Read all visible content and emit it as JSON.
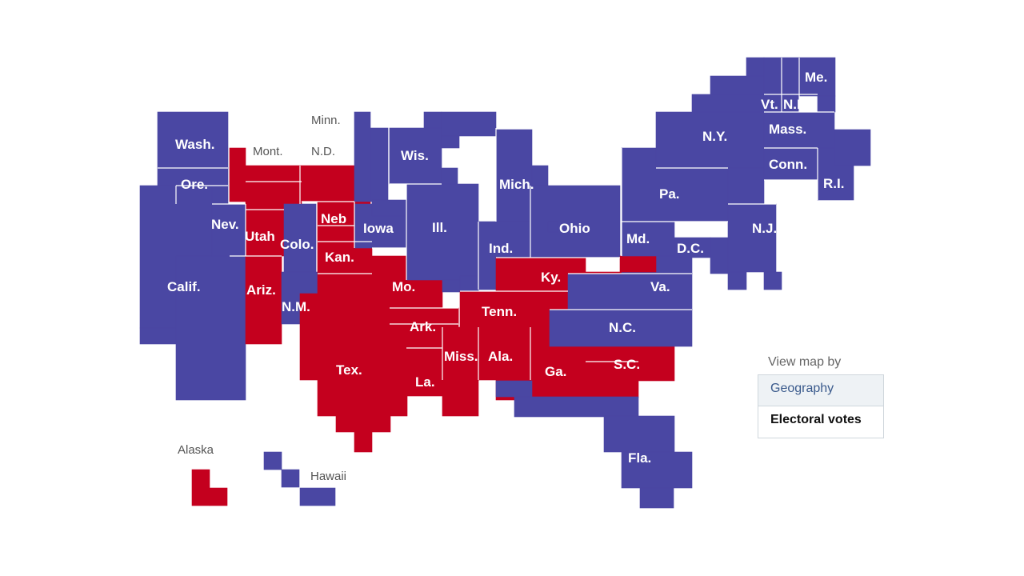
{
  "colors": {
    "democrat": "#4a47a3",
    "republican": "#c4001e",
    "border": "#ffffff"
  },
  "map": {
    "states": [
      {
        "id": "wash",
        "label": "Wash.",
        "party": "D"
      },
      {
        "id": "ore",
        "label": "Ore.",
        "party": "D"
      },
      {
        "id": "calif",
        "label": "Calif.",
        "party": "D"
      },
      {
        "id": "nev",
        "label": "Nev.",
        "party": "D"
      },
      {
        "id": "mont",
        "label": "Mont.",
        "party": "R"
      },
      {
        "id": "idaho",
        "label": "",
        "party": "R"
      },
      {
        "id": "wyo",
        "label": "",
        "party": "R"
      },
      {
        "id": "utah",
        "label": "Utah",
        "party": "R"
      },
      {
        "id": "ariz",
        "label": "Ariz.",
        "party": "R"
      },
      {
        "id": "colo",
        "label": "Colo.",
        "party": "D"
      },
      {
        "id": "nm",
        "label": "N.M.",
        "party": "D"
      },
      {
        "id": "nd",
        "label": "N.D.",
        "party": "R"
      },
      {
        "id": "sd",
        "label": "",
        "party": "R"
      },
      {
        "id": "neb",
        "label": "Neb",
        "party": "R"
      },
      {
        "id": "kan",
        "label": "Kan.",
        "party": "R"
      },
      {
        "id": "okla",
        "label": "",
        "party": "R"
      },
      {
        "id": "tex",
        "label": "Tex.",
        "party": "R"
      },
      {
        "id": "minn",
        "label": "Minn.",
        "party": "D"
      },
      {
        "id": "iowa",
        "label": "Iowa",
        "party": "D"
      },
      {
        "id": "mo",
        "label": "Mo.",
        "party": "R"
      },
      {
        "id": "ark",
        "label": "Ark.",
        "party": "R"
      },
      {
        "id": "la",
        "label": "La.",
        "party": "R"
      },
      {
        "id": "wis",
        "label": "Wis.",
        "party": "D"
      },
      {
        "id": "ill",
        "label": "Ill.",
        "party": "D"
      },
      {
        "id": "mich",
        "label": "Mich.",
        "party": "D"
      },
      {
        "id": "ind",
        "label": "Ind.",
        "party": "D"
      },
      {
        "id": "ohio",
        "label": "Ohio",
        "party": "D"
      },
      {
        "id": "ky",
        "label": "Ky.",
        "party": "R"
      },
      {
        "id": "tenn",
        "label": "Tenn.",
        "party": "R"
      },
      {
        "id": "miss",
        "label": "Miss.",
        "party": "R"
      },
      {
        "id": "ala",
        "label": "Ala.",
        "party": "R"
      },
      {
        "id": "ga",
        "label": "Ga.",
        "party": "R"
      },
      {
        "id": "sc",
        "label": "S.C.",
        "party": "R"
      },
      {
        "id": "nc",
        "label": "N.C.",
        "party": "D"
      },
      {
        "id": "fla",
        "label": "Fla.",
        "party": "D"
      },
      {
        "id": "va",
        "label": "Va.",
        "party": "D"
      },
      {
        "id": "wva",
        "label": "",
        "party": "R"
      },
      {
        "id": "md",
        "label": "Md.",
        "party": "D"
      },
      {
        "id": "dc",
        "label": "D.C.",
        "party": "D"
      },
      {
        "id": "del",
        "label": "",
        "party": "D"
      },
      {
        "id": "pa",
        "label": "Pa.",
        "party": "D"
      },
      {
        "id": "nj",
        "label": "N.J.",
        "party": "D"
      },
      {
        "id": "ny",
        "label": "N.Y.",
        "party": "D"
      },
      {
        "id": "conn",
        "label": "Conn.",
        "party": "D"
      },
      {
        "id": "ri",
        "label": "R.I.",
        "party": "D"
      },
      {
        "id": "mass",
        "label": "Mass.",
        "party": "D"
      },
      {
        "id": "vt",
        "label": "Vt.",
        "party": "D"
      },
      {
        "id": "nh",
        "label": "N.H.",
        "party": "D"
      },
      {
        "id": "me",
        "label": "Me.",
        "party": "D"
      },
      {
        "id": "alaska",
        "label": "Alaska",
        "party": "R"
      },
      {
        "id": "hawaii",
        "label": "Hawaii",
        "party": "D"
      }
    ]
  },
  "controls": {
    "title": "View map by",
    "options": [
      {
        "label": "Geography",
        "selected": false
      },
      {
        "label": "Electoral votes",
        "selected": true
      }
    ]
  }
}
